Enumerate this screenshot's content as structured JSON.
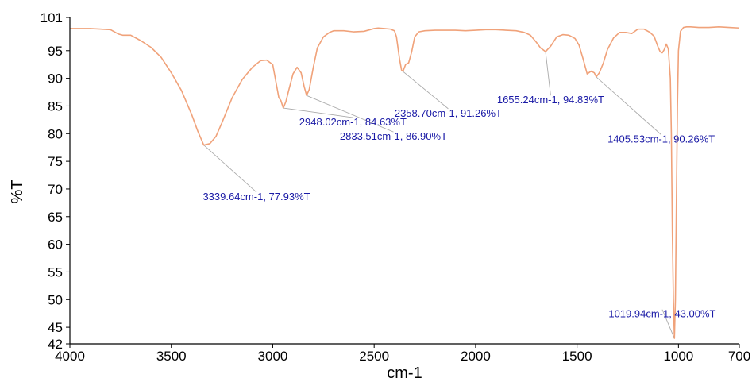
{
  "chart_data": {
    "type": "line",
    "title": "",
    "xlabel": "cm-1",
    "ylabel": "%T",
    "xlim": [
      4000,
      700
    ],
    "x_reversed": true,
    "ylim": [
      42,
      101
    ],
    "x_ticks": [
      4000,
      3500,
      3000,
      2500,
      2000,
      1500,
      1000,
      700
    ],
    "y_ticks": [
      42,
      45,
      50,
      55,
      60,
      65,
      70,
      75,
      80,
      85,
      90,
      95,
      101
    ],
    "grid": false,
    "series": [
      {
        "color": "#f0a27a",
        "x": [
          4000,
          3900,
          3800,
          3760,
          3740,
          3700,
          3650,
          3600,
          3550,
          3500,
          3450,
          3400,
          3370,
          3340,
          3310,
          3280,
          3250,
          3200,
          3150,
          3100,
          3060,
          3030,
          3000,
          2985,
          2970,
          2960,
          2948,
          2935,
          2920,
          2900,
          2880,
          2860,
          2845,
          2833,
          2820,
          2800,
          2780,
          2750,
          2720,
          2700,
          2650,
          2600,
          2550,
          2500,
          2480,
          2450,
          2420,
          2400,
          2390,
          2375,
          2365,
          2358,
          2345,
          2330,
          2315,
          2300,
          2280,
          2250,
          2200,
          2150,
          2100,
          2050,
          2000,
          1950,
          1900,
          1850,
          1800,
          1760,
          1730,
          1700,
          1680,
          1655,
          1630,
          1600,
          1570,
          1540,
          1510,
          1490,
          1470,
          1450,
          1430,
          1415,
          1405,
          1390,
          1370,
          1350,
          1320,
          1290,
          1260,
          1230,
          1200,
          1170,
          1140,
          1120,
          1100,
          1090,
          1080,
          1070,
          1060,
          1050,
          1040,
          1035,
          1030,
          1025,
          1019.94,
          1015,
          1010,
          1005,
          1000,
          990,
          975,
          960,
          940,
          900,
          850,
          800,
          750,
          700
        ],
        "y": [
          99,
          99,
          98.8,
          98,
          97.8,
          97.8,
          96.8,
          95.6,
          93.8,
          91,
          87.8,
          83.5,
          80.5,
          77.93,
          78.2,
          79.5,
          82,
          86.5,
          89.8,
          92,
          93.2,
          93.3,
          92.5,
          89.5,
          86.5,
          86,
          84.63,
          85.8,
          88,
          90.8,
          92,
          91,
          88.5,
          86.9,
          88,
          92,
          95.5,
          97.5,
          98.3,
          98.6,
          98.6,
          98.4,
          98.5,
          99,
          99.1,
          99,
          98.9,
          98.6,
          97.5,
          93.5,
          91.5,
          91.26,
          92.5,
          92.8,
          94.8,
          97.5,
          98.4,
          98.6,
          98.7,
          98.7,
          98.7,
          98.6,
          98.7,
          98.8,
          98.8,
          98.7,
          98.6,
          98.3,
          97.8,
          96.5,
          95.5,
          94.83,
          95.8,
          97.5,
          97.9,
          97.8,
          97.2,
          96,
          93.5,
          90.8,
          91.3,
          91,
          90.26,
          91,
          92.8,
          95.2,
          97.3,
          98.3,
          98.3,
          98.1,
          98.9,
          98.9,
          98.3,
          97.6,
          95.6,
          94.8,
          94.6,
          95.2,
          96.2,
          95.3,
          90,
          80,
          62,
          50,
          43,
          50,
          68,
          85,
          95,
          98.5,
          99.2,
          99.3,
          99.3,
          99.2,
          99.2,
          99.3,
          99.2,
          99.1
        ]
      }
    ],
    "annotations": [
      {
        "text": "3339.64cm-1, 77.93%T",
        "x": 3339.64,
        "y": 77.93,
        "label_x": 3080,
        "label_y": 67.4,
        "anchor": "middle"
      },
      {
        "text": "2948.02cm-1, 84.63%T",
        "x": 2948.02,
        "y": 84.63,
        "label_x": 2605,
        "label_y": 80.9,
        "anchor": "middle"
      },
      {
        "text": "2833.51cm-1, 86.90%T",
        "x": 2833.51,
        "y": 86.9,
        "label_x": 2405,
        "label_y": 78.3,
        "anchor": "middle"
      },
      {
        "text": "2358.70cm-1, 91.26%T",
        "x": 2358.7,
        "y": 91.26,
        "label_x": 2135,
        "label_y": 82.5,
        "anchor": "middle"
      },
      {
        "text": "1655.24cm-1, 94.83%T",
        "x": 1655.24,
        "y": 94.83,
        "label_x": 1630,
        "label_y": 84.9,
        "anchor": "middle"
      },
      {
        "text": "1405.53cm-1, 90.26%T",
        "x": 1405.53,
        "y": 90.26,
        "label_x": 1085,
        "label_y": 77.8,
        "anchor": "middle"
      },
      {
        "text": "1019.94cm-1, 43.00%T",
        "x": 1019.94,
        "y": 43.0,
        "label_x": 1080,
        "label_y": 46.2,
        "anchor": "middle"
      }
    ]
  }
}
